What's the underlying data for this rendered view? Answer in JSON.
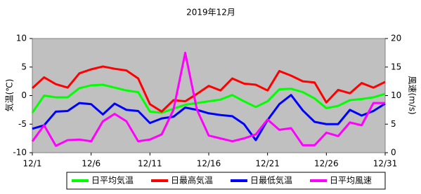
{
  "chart_data": {
    "type": "line",
    "title": "2019年12月",
    "y_label": "気温(℃)",
    "y2_label": "風速(m/s)",
    "categories": [
      "12/1",
      null,
      null,
      null,
      null,
      "12/6",
      null,
      null,
      null,
      null,
      "12/11",
      null,
      null,
      null,
      null,
      "12/16",
      null,
      null,
      null,
      null,
      "12/21",
      null,
      null,
      null,
      null,
      "12/26",
      null,
      null,
      null,
      null,
      "12/31"
    ],
    "ylim": [
      -10,
      10
    ],
    "yticks": [
      -10,
      -5,
      0,
      5,
      10
    ],
    "y2lim": [
      0,
      20
    ],
    "y2ticks": [
      0,
      5,
      10,
      15,
      20
    ],
    "series": [
      {
        "name": "日平均気温",
        "color": "#00ff00",
        "values": [
          -3,
          0,
          -0.3,
          -0.3,
          1.3,
          1.8,
          1.9,
          1.4,
          0.9,
          0.6,
          -2.8,
          -3,
          -2.3,
          -1.6,
          -1.3,
          -1,
          -0.7,
          0.1,
          -1,
          -2,
          -1,
          1.1,
          1.2,
          0.6,
          -0.5,
          -2.2,
          -1.8,
          -0.8,
          -0.6,
          -0.3,
          0.3
        ]
      },
      {
        "name": "日最高気温",
        "color": "#ff0000",
        "values": [
          1.3,
          3.2,
          2,
          1.4,
          3.9,
          4.6,
          5.1,
          4.7,
          4.4,
          3,
          -1.5,
          -2.8,
          -0.8,
          -1,
          0.3,
          1.7,
          0.9,
          3,
          2.1,
          1.9,
          0.9,
          4.3,
          3.5,
          2.5,
          2.3,
          -1.2,
          1,
          0.4,
          2.2,
          1.4,
          2.4
        ]
      },
      {
        "name": "日最低気温",
        "color": "#0000ff",
        "values": [
          -5.8,
          -5.2,
          -2.8,
          -2.7,
          -1.3,
          -1.5,
          -3.3,
          -1.4,
          -2.5,
          -2.7,
          -4.8,
          -4,
          -3.7,
          -2.1,
          -2.5,
          -3.1,
          -3.4,
          -3.6,
          -5,
          -7.8,
          -4.3,
          -1.5,
          0.1,
          -2.6,
          -4.6,
          -5,
          -5,
          -2.5,
          -3.5,
          -2.7,
          -1.4
        ]
      },
      {
        "name": "日平均風速",
        "color": "#ff00ff",
        "axis": "y2",
        "values": [
          2,
          4.8,
          1.2,
          2.2,
          2.3,
          2,
          5.5,
          6.8,
          5.5,
          2,
          2.3,
          3.2,
          7.5,
          17.5,
          7.5,
          3,
          2.5,
          2,
          2.5,
          3.2,
          5.8,
          4,
          4.3,
          1.3,
          1.3,
          3.5,
          2.9,
          5.3,
          4.8,
          8.7,
          8.7
        ]
      }
    ]
  }
}
